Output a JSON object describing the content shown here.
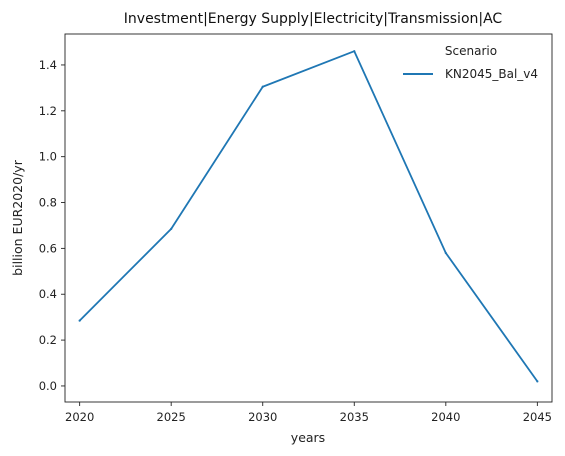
{
  "chart_data": {
    "type": "line",
    "title": "Investment|Energy Supply|Electricity|Transmission|AC",
    "xlabel": "years",
    "ylabel": "billion EUR2020/yr",
    "x": [
      2020,
      2025,
      2030,
      2035,
      2040,
      2045
    ],
    "xticks": [
      "2020",
      "2025",
      "2030",
      "2035",
      "2040",
      "2045"
    ],
    "yticks": [
      "0.0",
      "0.2",
      "0.4",
      "0.6",
      "0.8",
      "1.0",
      "1.2",
      "1.4"
    ],
    "ylim": [
      -0.07,
      1.535
    ],
    "xlim": [
      2019.2,
      2045.8
    ],
    "grid": false,
    "legend": {
      "title": "Scenario",
      "placement": "top-right"
    },
    "series": [
      {
        "name": "KN2045_Bal_v4",
        "color": "#1f77b4",
        "values": [
          0.285,
          0.685,
          1.305,
          1.46,
          0.58,
          0.02
        ]
      }
    ]
  }
}
